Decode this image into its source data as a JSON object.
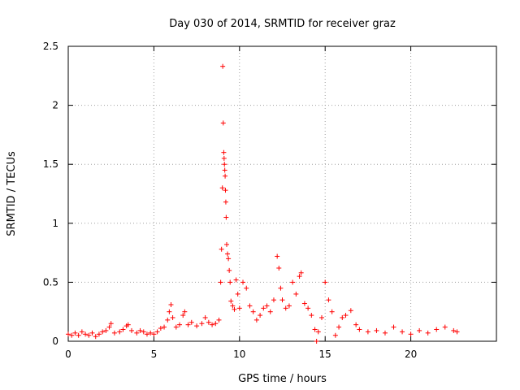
{
  "chart_data": {
    "type": "scatter",
    "title": "Day 030 of 2014, SRMTID for receiver graz",
    "xlabel": "GPS time / hours",
    "ylabel": "SRMTID / TECUs",
    "xlim": [
      0,
      25
    ],
    "ylim": [
      0,
      2.5
    ],
    "xticks": [
      0,
      5,
      10,
      15,
      20
    ],
    "xtick_labels": [
      "0",
      "5",
      "10",
      "15",
      "20"
    ],
    "yticks": [
      0,
      0.5,
      1,
      1.5,
      2,
      2.5
    ],
    "ytick_labels": [
      "0",
      "0.5",
      "1",
      "1.5",
      "2",
      "2.5"
    ],
    "grid": true,
    "marker": "+",
    "colors": {
      "series": "#ff0000",
      "axes": "#000000",
      "grid": "#a0a0a0"
    },
    "series": [
      {
        "name": "SRMTID",
        "points": [
          [
            0.0,
            0.06
          ],
          [
            0.2,
            0.05
          ],
          [
            0.4,
            0.07
          ],
          [
            0.6,
            0.05
          ],
          [
            0.8,
            0.08
          ],
          [
            1.0,
            0.06
          ],
          [
            1.2,
            0.05
          ],
          [
            1.4,
            0.07
          ],
          [
            1.6,
            0.04
          ],
          [
            1.8,
            0.06
          ],
          [
            2.0,
            0.08
          ],
          [
            2.2,
            0.09
          ],
          [
            2.4,
            0.12
          ],
          [
            2.5,
            0.15
          ],
          [
            2.7,
            0.07
          ],
          [
            3.0,
            0.08
          ],
          [
            3.2,
            0.1
          ],
          [
            3.4,
            0.13
          ],
          [
            3.5,
            0.14
          ],
          [
            3.7,
            0.09
          ],
          [
            4.0,
            0.07
          ],
          [
            4.2,
            0.09
          ],
          [
            4.4,
            0.08
          ],
          [
            4.6,
            0.06
          ],
          [
            4.8,
            0.07
          ],
          [
            5.0,
            0.06
          ],
          [
            5.2,
            0.08
          ],
          [
            5.4,
            0.11
          ],
          [
            5.6,
            0.12
          ],
          [
            5.8,
            0.18
          ],
          [
            5.9,
            0.25
          ],
          [
            6.0,
            0.31
          ],
          [
            6.1,
            0.2
          ],
          [
            6.3,
            0.12
          ],
          [
            6.5,
            0.14
          ],
          [
            6.7,
            0.22
          ],
          [
            6.8,
            0.25
          ],
          [
            7.0,
            0.14
          ],
          [
            7.2,
            0.16
          ],
          [
            7.5,
            0.13
          ],
          [
            7.8,
            0.15
          ],
          [
            8.0,
            0.2
          ],
          [
            8.2,
            0.16
          ],
          [
            8.4,
            0.14
          ],
          [
            8.6,
            0.15
          ],
          [
            8.8,
            0.18
          ],
          [
            8.9,
            0.5
          ],
          [
            8.95,
            0.78
          ],
          [
            9.0,
            1.3
          ],
          [
            9.02,
            2.33
          ],
          [
            9.05,
            1.85
          ],
          [
            9.08,
            1.6
          ],
          [
            9.1,
            1.55
          ],
          [
            9.12,
            1.5
          ],
          [
            9.14,
            1.45
          ],
          [
            9.16,
            1.4
          ],
          [
            9.18,
            1.28
          ],
          [
            9.2,
            1.18
          ],
          [
            9.22,
            1.05
          ],
          [
            9.25,
            0.82
          ],
          [
            9.3,
            0.74
          ],
          [
            9.35,
            0.7
          ],
          [
            9.4,
            0.6
          ],
          [
            9.45,
            0.5
          ],
          [
            9.5,
            0.34
          ],
          [
            9.6,
            0.3
          ],
          [
            9.7,
            0.27
          ],
          [
            9.8,
            0.52
          ],
          [
            9.9,
            0.4
          ],
          [
            10.0,
            0.28
          ],
          [
            10.2,
            0.5
          ],
          [
            10.4,
            0.45
          ],
          [
            10.6,
            0.3
          ],
          [
            10.8,
            0.25
          ],
          [
            11.0,
            0.18
          ],
          [
            11.2,
            0.22
          ],
          [
            11.4,
            0.28
          ],
          [
            11.6,
            0.3
          ],
          [
            11.8,
            0.25
          ],
          [
            12.0,
            0.35
          ],
          [
            12.2,
            0.72
          ],
          [
            12.3,
            0.62
          ],
          [
            12.4,
            0.45
          ],
          [
            12.5,
            0.35
          ],
          [
            12.7,
            0.28
          ],
          [
            12.9,
            0.3
          ],
          [
            13.1,
            0.5
          ],
          [
            13.3,
            0.4
          ],
          [
            13.5,
            0.55
          ],
          [
            13.6,
            0.58
          ],
          [
            13.8,
            0.32
          ],
          [
            14.0,
            0.28
          ],
          [
            14.2,
            0.22
          ],
          [
            14.4,
            0.1
          ],
          [
            14.5,
            0.0
          ],
          [
            14.6,
            0.08
          ],
          [
            14.8,
            0.2
          ],
          [
            15.0,
            0.5
          ],
          [
            15.2,
            0.35
          ],
          [
            15.4,
            0.25
          ],
          [
            15.6,
            0.05
          ],
          [
            15.8,
            0.12
          ],
          [
            16.0,
            0.2
          ],
          [
            16.2,
            0.22
          ],
          [
            16.5,
            0.26
          ],
          [
            16.8,
            0.14
          ],
          [
            17.0,
            0.1
          ],
          [
            17.5,
            0.08
          ],
          [
            18.0,
            0.09
          ],
          [
            18.5,
            0.07
          ],
          [
            19.0,
            0.12
          ],
          [
            19.5,
            0.08
          ],
          [
            20.0,
            0.06
          ],
          [
            20.5,
            0.09
          ],
          [
            21.0,
            0.07
          ],
          [
            21.5,
            0.1
          ],
          [
            22.0,
            0.12
          ],
          [
            22.5,
            0.09
          ],
          [
            22.7,
            0.08
          ]
        ]
      }
    ]
  }
}
